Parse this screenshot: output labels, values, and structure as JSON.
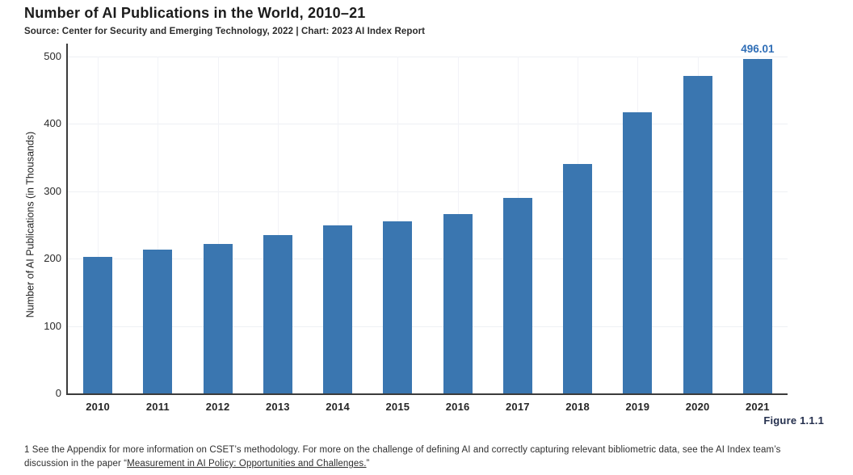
{
  "header": {
    "title": "Number of AI Publications in the World, 2010–21",
    "source_line": "Source: Center for Security and Emerging Technology, 2022 | Chart: 2023 AI Index Report"
  },
  "figure_label": "Figure 1.1.1",
  "footnote": {
    "line1": "1 See the Appendix for more information on CSET’s methodology. For more on the challenge of defining AI and correctly capturing relevant bibliometric data, see the AI Index team’s",
    "line2_prefix": "discussion in the paper “",
    "link_text": "Measurement in AI Policy: Opportunities and Challenges.",
    "line2_suffix": "”"
  },
  "chart_data": {
    "type": "bar",
    "title": "Number of AI Publications in the World, 2010–21",
    "categories": [
      "2010",
      "2011",
      "2012",
      "2013",
      "2014",
      "2015",
      "2016",
      "2017",
      "2018",
      "2019",
      "2020",
      "2021"
    ],
    "values": [
      203,
      213,
      222,
      235,
      249,
      256,
      266,
      290,
      340,
      417,
      471,
      496.01
    ],
    "xlabel": "",
    "ylabel": "Number of AI Publications (in Thousands)",
    "yticks": [
      0,
      100,
      200,
      300,
      400,
      500
    ],
    "ylim": [
      0,
      500
    ],
    "grid": true,
    "annotations": [
      {
        "category": "2021",
        "text": "496.01"
      }
    ],
    "colors": {
      "bar": "#3a76b0",
      "annotation": "#2e6db6",
      "axis": "#3b3b3b",
      "gridline": "#eef0f4",
      "figure_label": "#25304e"
    },
    "legend": null
  }
}
